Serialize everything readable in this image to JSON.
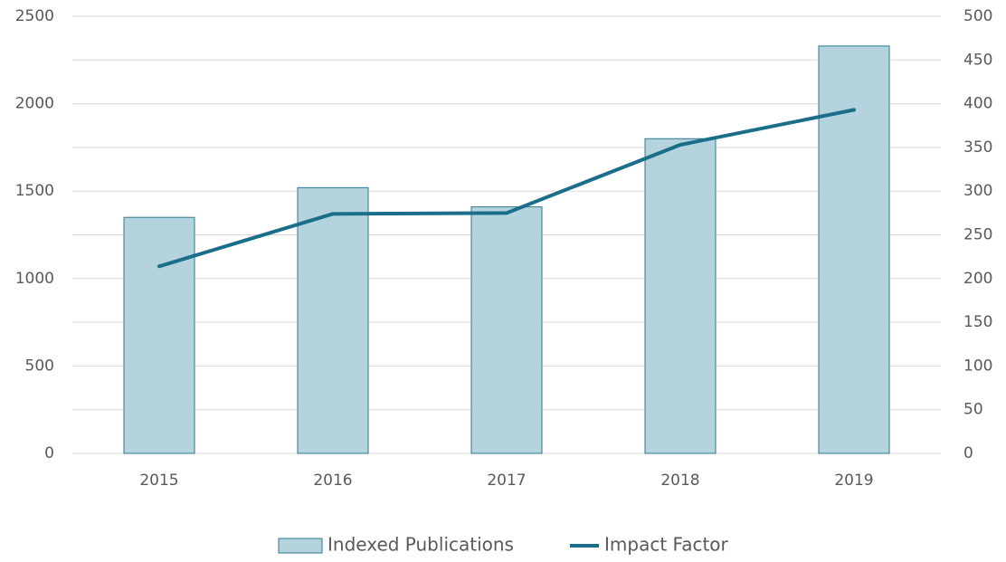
{
  "chart_data": {
    "type": "bar",
    "categories": [
      "2015",
      "2016",
      "2017",
      "2018",
      "2019"
    ],
    "series": [
      {
        "name": "Indexed Publications",
        "type": "bar",
        "color": "#b4d3dd",
        "edge_color": "#2b7a90",
        "values": [
          1350,
          1520,
          1410,
          1800,
          2330
        ]
      },
      {
        "name": "Impact Factor",
        "type": "line",
        "axis": "y2",
        "color": "#1a6e8a",
        "values": [
          214,
          274,
          275,
          353,
          393
        ]
      }
    ],
    "ylim": [
      0,
      2500
    ],
    "yticks": [
      0,
      500,
      1000,
      1500,
      2000,
      2500
    ],
    "y2lim": [
      0,
      500
    ],
    "y2ticks": [
      0,
      50,
      100,
      150,
      200,
      250,
      300,
      350,
      400,
      450,
      500
    ],
    "grid": true,
    "legend": "bottom"
  }
}
